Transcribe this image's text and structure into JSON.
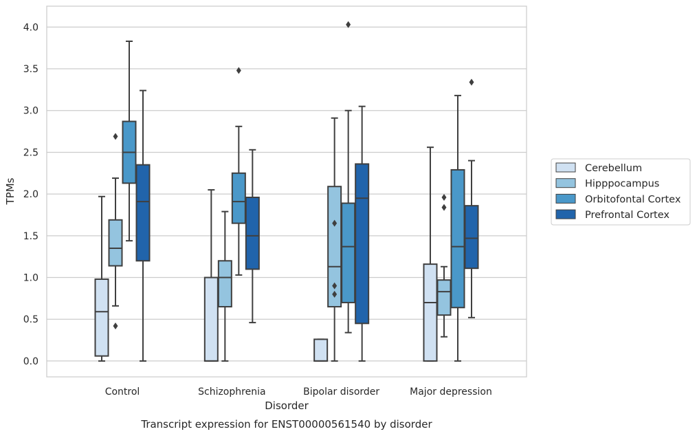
{
  "chart_data": {
    "type": "boxplot",
    "caption": "Transcript expression for ENST00000561540 by disorder",
    "xlabel": "Disorder",
    "ylabel": "TPMs",
    "ylim": [
      -0.19,
      4.25
    ],
    "yticks": [
      0.0,
      0.5,
      1.0,
      1.5,
      2.0,
      2.5,
      3.0,
      3.5,
      4.0
    ],
    "ytick_labels": [
      "0.0",
      "0.5",
      "1.0",
      "1.5",
      "2.0",
      "2.5",
      "3.0",
      "3.5",
      "4.0"
    ],
    "grid": "horizontal",
    "legend_position": "right",
    "categories": [
      "Control",
      "Schizophrenia",
      "Bipolar disorder",
      "Major depression"
    ],
    "series": [
      {
        "name": "Cerebellum",
        "color": "#d0e1f2",
        "boxes": [
          {
            "whislo": 0.0,
            "q1": 0.06,
            "med": 0.59,
            "q3": 0.98,
            "whishi": 1.97,
            "fliers": []
          },
          {
            "whislo": 0.0,
            "q1": 0.0,
            "med": 0.0,
            "q3": 1.0,
            "whishi": 2.05,
            "fliers": []
          },
          {
            "whislo": 0.0,
            "q1": 0.0,
            "med": 0.0,
            "q3": 0.26,
            "whishi": 0.26,
            "fliers": []
          },
          {
            "whislo": 0.0,
            "q1": 0.0,
            "med": 0.7,
            "q3": 1.16,
            "whishi": 2.56,
            "fliers": []
          }
        ]
      },
      {
        "name": "Hipppocampus",
        "color": "#94c4df",
        "boxes": [
          {
            "whislo": 0.66,
            "q1": 1.14,
            "med": 1.35,
            "q3": 1.69,
            "whishi": 2.19,
            "fliers": [
              2.69,
              0.42
            ]
          },
          {
            "whislo": 0.0,
            "q1": 0.65,
            "med": 1.0,
            "q3": 1.2,
            "whishi": 1.79,
            "fliers": []
          },
          {
            "whislo": 0.0,
            "q1": 0.65,
            "med": 1.13,
            "q3": 2.09,
            "whishi": 2.91,
            "fliers": [
              1.65,
              0.9,
              0.8
            ]
          },
          {
            "whislo": 0.29,
            "q1": 0.55,
            "med": 0.83,
            "q3": 0.97,
            "whishi": 1.13,
            "fliers": [
              1.96,
              1.84
            ]
          }
        ]
      },
      {
        "name": "Orbitofontal Cortex",
        "color": "#4a98c9",
        "boxes": [
          {
            "whislo": 1.44,
            "q1": 2.13,
            "med": 2.5,
            "q3": 2.87,
            "whishi": 3.83,
            "fliers": []
          },
          {
            "whislo": 1.03,
            "q1": 1.65,
            "med": 1.91,
            "q3": 2.25,
            "whishi": 2.81,
            "fliers": [
              3.48
            ]
          },
          {
            "whislo": 0.34,
            "q1": 0.7,
            "med": 1.37,
            "q3": 1.89,
            "whishi": 3.0,
            "fliers": [
              4.03
            ]
          },
          {
            "whislo": 0.0,
            "q1": 0.64,
            "med": 1.37,
            "q3": 2.29,
            "whishi": 3.18,
            "fliers": []
          }
        ]
      },
      {
        "name": "Prefrontal Cortex",
        "color": "#2164ab",
        "boxes": [
          {
            "whislo": 0.0,
            "q1": 1.2,
            "med": 1.91,
            "q3": 2.35,
            "whishi": 3.24,
            "fliers": []
          },
          {
            "whislo": 0.46,
            "q1": 1.1,
            "med": 1.5,
            "q3": 1.96,
            "whishi": 2.53,
            "fliers": []
          },
          {
            "whislo": 0.0,
            "q1": 0.45,
            "med": 1.95,
            "q3": 2.36,
            "whishi": 3.05,
            "fliers": []
          },
          {
            "whislo": 0.52,
            "q1": 1.11,
            "med": 1.47,
            "q3": 1.86,
            "whishi": 2.4,
            "fliers": [
              3.34
            ]
          }
        ]
      }
    ]
  }
}
